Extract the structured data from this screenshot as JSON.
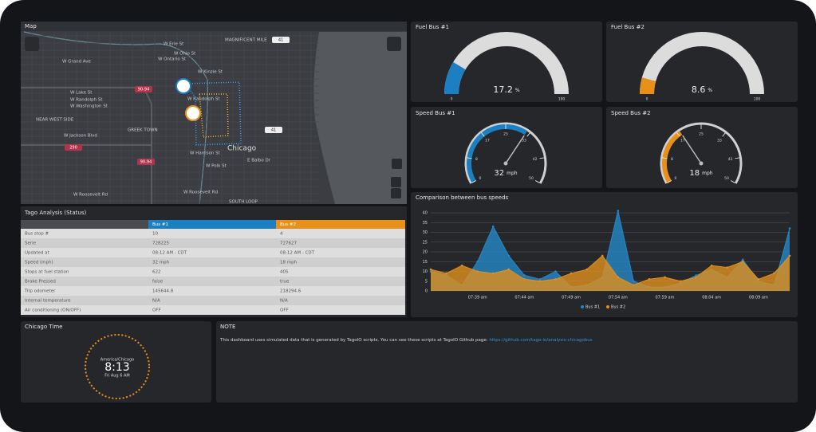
{
  "map": {
    "title": "Map",
    "labels": [
      "W Erie St",
      "W Ohio St",
      "W Ontario St",
      "MAGNIFICENT MILE",
      "W Grand Ave",
      "W Kinzie St",
      "W Lake St",
      "W Randolph St",
      "W Washington St",
      "W Randolph St",
      "NEAR WEST SIDE",
      "GREEK TOWN",
      "W Jackson Blvd",
      "W Harrison St",
      "W Polk St",
      "Chicago",
      "E Balbo Dr",
      "W Roosevelt Rd",
      "W Roosevelt Rd",
      "SOUTH LOOP"
    ],
    "shields": [
      "90-94",
      "290",
      "90-94",
      "41",
      "41"
    ]
  },
  "chart_data": [
    {
      "type": "gauge",
      "title": "Fuel Bus #1",
      "value": 17.2,
      "unit": "%",
      "lim": [
        0,
        100
      ],
      "ticks": [
        0,
        100
      ],
      "color": "#1b7fc1"
    },
    {
      "type": "gauge",
      "title": "Fuel Bus #2",
      "value": 8.6,
      "unit": "%",
      "lim": [
        0,
        100
      ],
      "ticks": [
        0,
        100
      ],
      "color": "#e8911a"
    },
    {
      "type": "dial",
      "title": "Speed Bus #1",
      "value": 32,
      "unit": "mph",
      "lim": [
        0,
        50
      ],
      "ticks": [
        0,
        8,
        17,
        25,
        33,
        42,
        50
      ],
      "color": "#1b7fc1"
    },
    {
      "type": "dial",
      "title": "Speed Bus #2",
      "value": 18,
      "unit": "mph",
      "lim": [
        0,
        50
      ],
      "ticks": [
        0,
        8,
        17,
        25,
        33,
        42,
        50
      ],
      "color": "#e8911a"
    },
    {
      "type": "area",
      "title": "Comparison between bus speeds",
      "categories": [
        null,
        null,
        null,
        "07:39 am",
        null,
        null,
        "07:44 am",
        null,
        null,
        "07:49 am",
        null,
        null,
        "07:54 am",
        null,
        null,
        "07:59 am",
        null,
        null,
        "08:04 am",
        null,
        null,
        "08:09 am",
        null,
        null
      ],
      "series": [
        {
          "name": "Bus #1",
          "color": "#2588c7",
          "values": [
            10,
            8,
            3,
            15,
            33,
            18,
            8,
            6,
            10,
            2,
            3,
            7,
            41,
            5,
            2,
            2,
            4,
            8,
            11,
            7,
            16,
            5,
            3,
            32
          ]
        },
        {
          "name": "Bus #2",
          "color": "#e0901e",
          "values": [
            11,
            9,
            13,
            10,
            9,
            11,
            6,
            5,
            6,
            9,
            11,
            18,
            7,
            3,
            6,
            7,
            5,
            7,
            13,
            12,
            15,
            6,
            9,
            18
          ]
        }
      ],
      "ylim": [
        0,
        40
      ],
      "yticks": [
        0,
        5,
        10,
        15,
        20,
        25,
        30,
        35,
        40
      ],
      "grid": true
    }
  ],
  "table": {
    "title": "Tago Analysis (Status)",
    "columns": [
      "Bus #1",
      "Bus #2"
    ],
    "rows": [
      [
        "Bus stop #",
        "10",
        "4"
      ],
      [
        "Serie",
        "728225",
        "727627"
      ],
      [
        "Updated at",
        "08:12 AM - CDT",
        "08:12 AM - CDT"
      ],
      [
        "Speed (mph)",
        "32 mph",
        "18 mph"
      ],
      [
        "Stops at fuel station",
        "622",
        "405"
      ],
      [
        "Brake Pressed",
        "false",
        "true"
      ],
      [
        "Trip odometer",
        "145644.8",
        "218294.6"
      ],
      [
        "Internal temperature",
        "N/A",
        "N/A"
      ],
      [
        "Air conditioning (ON/OFF)",
        "OFF",
        "OFF"
      ]
    ]
  },
  "clock": {
    "title": "Chicago Time",
    "zone": "America/Chicago",
    "time": "8:13",
    "date": "Fri Aug 6 AM"
  },
  "note": {
    "title": "NOTE",
    "text": "This dashboard uses simulated data that is generated by TagoIO scripts. You can see these scripts at TagoIO Github page: ",
    "link": "https://github.com/tago-io/analysis-chicagobus"
  }
}
